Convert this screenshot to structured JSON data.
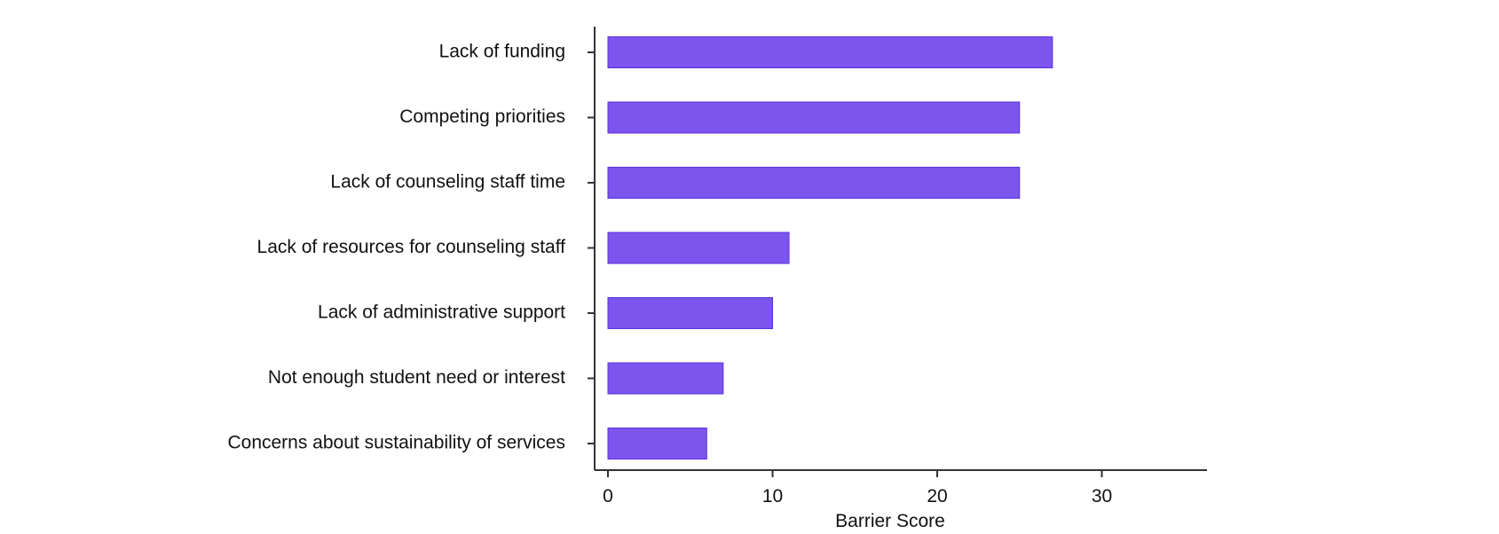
{
  "chart_data": {
    "type": "bar",
    "orientation": "horizontal",
    "title": "",
    "xlabel": "Barrier Score",
    "ylabel": "",
    "xlim": [
      0,
      36
    ],
    "xticks": [
      0,
      10,
      20,
      30
    ],
    "grid": false,
    "legend": "none",
    "bar_color": "#7b55ee",
    "bar_edge_color": "#5a32d8",
    "categories": [
      "Lack of funding",
      "Competing priorities",
      "Lack of counseling staff time",
      "Lack of resources for counseling staff",
      "Lack of administrative support",
      "Not enough student need or interest",
      "Concerns about sustainability of services"
    ],
    "values": [
      27,
      25,
      25,
      11,
      10,
      7,
      6
    ]
  }
}
